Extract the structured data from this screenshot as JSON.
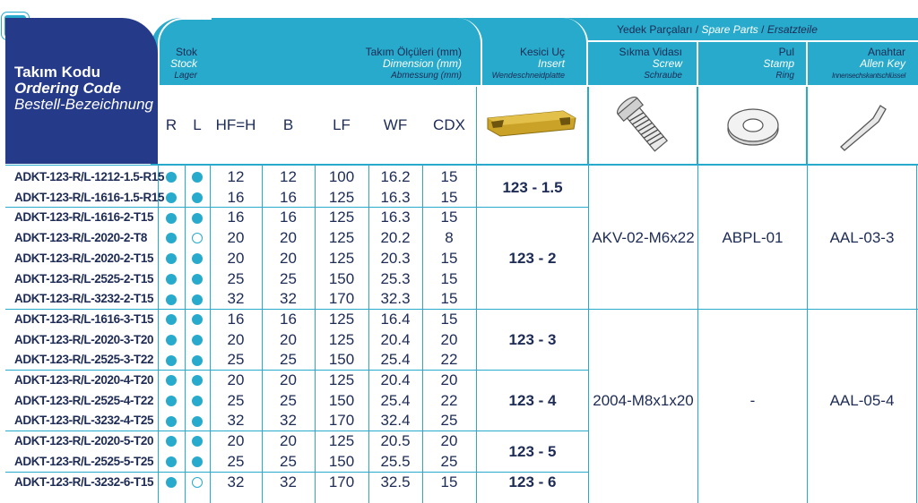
{
  "header": {
    "ordering": {
      "tr": "Takım Kodu",
      "en": "Ordering Code",
      "de": "Bestell-Bezeichnung"
    },
    "stock": {
      "tr": "Stok",
      "en": "Stock",
      "de": "Lager"
    },
    "dimension": {
      "tr": "Takım Ölçüleri (mm)",
      "en": "Dimension (mm)",
      "de": "Abmessung (mm)"
    },
    "insert": {
      "tr": "Kesici Uç",
      "en": "Insert",
      "de": "Wendeschneidplatte"
    },
    "spare_parts": {
      "tr": "Yedek Parçaları",
      "sep1": "/",
      "en": "Spare Parts",
      "sep2": "/",
      "de": "Ersatzteile"
    },
    "screw": {
      "tr": "Sıkma Vidası",
      "en": "Screw",
      "de": "Schraube"
    },
    "stamp": {
      "tr": "Pul",
      "en": "Stamp",
      "de": "Ring"
    },
    "key": {
      "tr": "Anahtar",
      "en": "Allen Key",
      "de": "Innensechskantschlüssel"
    },
    "columns": [
      "R",
      "L",
      "HF=H",
      "B",
      "LF",
      "WF",
      "CDX"
    ]
  },
  "rows": [
    {
      "code": "ADKT-123-R/L-1212-1.5-R15",
      "R": "filled",
      "L": "filled",
      "HF": "12",
      "B": "12",
      "LF": "100",
      "WF": "16.2",
      "CDX": "15"
    },
    {
      "code": "ADKT-123-R/L-1616-1.5-R15",
      "R": "filled",
      "L": "filled",
      "HF": "16",
      "B": "16",
      "LF": "125",
      "WF": "16.3",
      "CDX": "15"
    },
    {
      "code": "ADKT-123-R/L-1616-2-T15",
      "R": "filled",
      "L": "filled",
      "HF": "16",
      "B": "16",
      "LF": "125",
      "WF": "16.3",
      "CDX": "15"
    },
    {
      "code": "ADKT-123-R/L-2020-2-T8",
      "R": "filled",
      "L": "empty",
      "HF": "20",
      "B": "20",
      "LF": "125",
      "WF": "20.2",
      "CDX": "8"
    },
    {
      "code": "ADKT-123-R/L-2020-2-T15",
      "R": "filled",
      "L": "filled",
      "HF": "20",
      "B": "20",
      "LF": "125",
      "WF": "20.3",
      "CDX": "15"
    },
    {
      "code": "ADKT-123-R/L-2525-2-T15",
      "R": "filled",
      "L": "filled",
      "HF": "25",
      "B": "25",
      "LF": "150",
      "WF": "25.3",
      "CDX": "15"
    },
    {
      "code": "ADKT-123-R/L-3232-2-T15",
      "R": "filled",
      "L": "filled",
      "HF": "32",
      "B": "32",
      "LF": "170",
      "WF": "32.3",
      "CDX": "15"
    },
    {
      "code": "ADKT-123-R/L-1616-3-T15",
      "R": "filled",
      "L": "filled",
      "HF": "16",
      "B": "16",
      "LF": "125",
      "WF": "16.4",
      "CDX": "15"
    },
    {
      "code": "ADKT-123-R/L-2020-3-T20",
      "R": "filled",
      "L": "filled",
      "HF": "20",
      "B": "20",
      "LF": "125",
      "WF": "20.4",
      "CDX": "20"
    },
    {
      "code": "ADKT-123-R/L-2525-3-T22",
      "R": "filled",
      "L": "filled",
      "HF": "25",
      "B": "25",
      "LF": "150",
      "WF": "25.4",
      "CDX": "22"
    },
    {
      "code": "ADKT-123-R/L-2020-4-T20",
      "R": "filled",
      "L": "filled",
      "HF": "20",
      "B": "20",
      "LF": "125",
      "WF": "20.4",
      "CDX": "20"
    },
    {
      "code": "ADKT-123-R/L-2525-4-T22",
      "R": "filled",
      "L": "filled",
      "HF": "25",
      "B": "25",
      "LF": "150",
      "WF": "25.4",
      "CDX": "22"
    },
    {
      "code": "ADKT-123-R/L-3232-4-T25",
      "R": "filled",
      "L": "filled",
      "HF": "32",
      "B": "32",
      "LF": "170",
      "WF": "32.4",
      "CDX": "25"
    },
    {
      "code": "ADKT-123-R/L-2020-5-T20",
      "R": "filled",
      "L": "filled",
      "HF": "20",
      "B": "20",
      "LF": "125",
      "WF": "20.5",
      "CDX": "20"
    },
    {
      "code": "ADKT-123-R/L-2525-5-T25",
      "R": "filled",
      "L": "filled",
      "HF": "25",
      "B": "25",
      "LF": "150",
      "WF": "25.5",
      "CDX": "25"
    },
    {
      "code": "ADKT-123-R/L-3232-6-T15",
      "R": "filled",
      "L": "empty",
      "HF": "32",
      "B": "32",
      "LF": "170",
      "WF": "32.5",
      "CDX": "15"
    }
  ],
  "inserts": [
    {
      "label": "123 - 1.5",
      "rows": [
        0,
        1
      ]
    },
    {
      "label": "123 - 2",
      "rows": [
        2,
        6
      ]
    },
    {
      "label": "123 - 3",
      "rows": [
        7,
        9
      ]
    },
    {
      "label": "123 - 4",
      "rows": [
        10,
        12
      ]
    },
    {
      "label": "123 - 5",
      "rows": [
        13,
        14
      ]
    },
    {
      "label": "123 - 6",
      "rows": [
        15,
        15
      ]
    }
  ],
  "spare_groups": [
    {
      "rows": [
        0,
        6
      ],
      "screw": "AKV-02-M6x22",
      "stamp": "ABPL-01",
      "key": "AAL-03-3"
    },
    {
      "rows": [
        7,
        15
      ],
      "screw": "2004-M8x1x20",
      "stamp": "-",
      "key": "AAL-05-4"
    }
  ],
  "colors": {
    "teal": "#27aacb",
    "navy": "#263a8a",
    "text": "#1d2b55",
    "insert_gold": "#c9a227"
  },
  "icons": [
    "insert-icon",
    "screw-icon",
    "washer-icon",
    "allen-key-icon"
  ]
}
